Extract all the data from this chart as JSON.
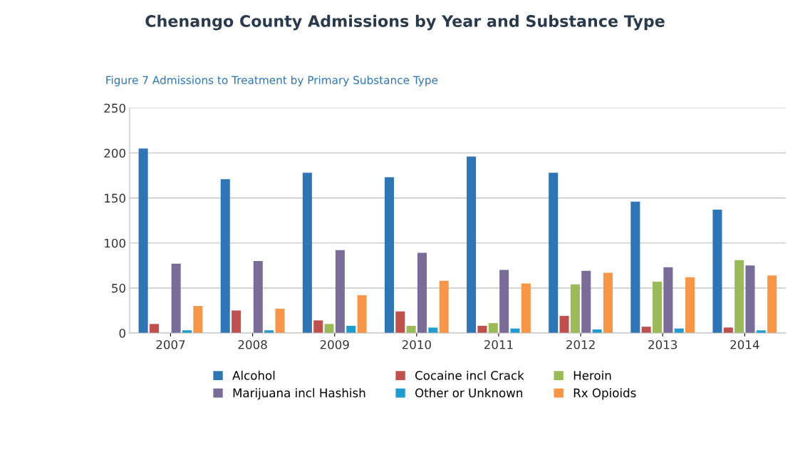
{
  "chart_data": {
    "type": "bar",
    "title": "Chenango County Admissions by Year and Substance Type",
    "subtitle": "Figure 7 Admissions to Treatment by Primary Substance Type",
    "categories": [
      "2007",
      "2008",
      "2009",
      "2010",
      "2011",
      "2012",
      "2013",
      "2014"
    ],
    "series": [
      {
        "name": "Alcohol",
        "color": "#2e75b6",
        "values": [
          205,
          171,
          178,
          173,
          196,
          178,
          146,
          137
        ]
      },
      {
        "name": "Cocaine incl Crack",
        "color": "#c0504d",
        "values": [
          10,
          25,
          14,
          24,
          8,
          19,
          7,
          6
        ]
      },
      {
        "name": "Heroin",
        "color": "#9bbb59",
        "values": [
          null,
          null,
          10,
          8,
          11,
          54,
          57,
          81
        ]
      },
      {
        "name": "Marijuana incl Hashish",
        "color": "#7a6c99",
        "values": [
          77,
          80,
          92,
          89,
          70,
          69,
          73,
          75
        ]
      },
      {
        "name": "Other or Unknown",
        "color": "#1f9dd1",
        "values": [
          3,
          3,
          8,
          6,
          5,
          4,
          5,
          3
        ]
      },
      {
        "name": "Rx Opioids",
        "color": "#f79646",
        "values": [
          30,
          27,
          42,
          58,
          55,
          67,
          62,
          64
        ]
      }
    ],
    "ylim": [
      0,
      250
    ],
    "yticks": [
      0,
      50,
      100,
      150,
      200,
      250
    ],
    "grid": "y",
    "legend": "bottom"
  }
}
